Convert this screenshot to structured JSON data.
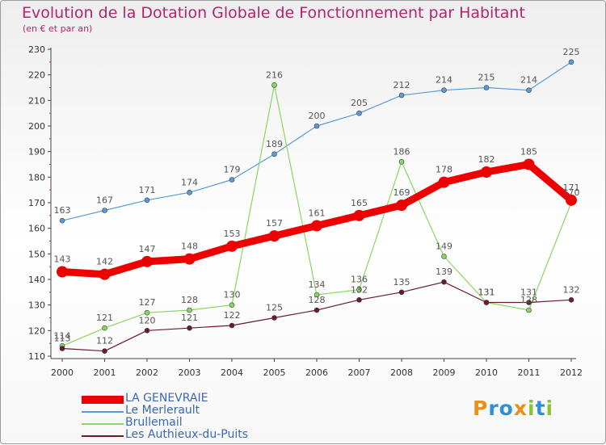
{
  "chart_data": {
    "type": "line",
    "title": "Evolution de la Dotation Globale de Fonctionnement par Habitant",
    "subtitle": "(en € et par an)",
    "xlabel": "",
    "ylabel": "",
    "categories": [
      "2000",
      "2001",
      "2002",
      "2003",
      "2004",
      "2005",
      "2006",
      "2007",
      "2008",
      "2009",
      "2010",
      "2011",
      "2012"
    ],
    "ylim": [
      110,
      230
    ],
    "yticks": [
      110,
      120,
      130,
      140,
      150,
      160,
      170,
      180,
      190,
      200,
      210,
      220,
      230
    ],
    "grid": false,
    "legend_position": "bottom-left",
    "series": [
      {
        "name": "LA GENEVRAIE",
        "color": "#ee0000",
        "width": 9,
        "marker": 7,
        "values": [
          143,
          142,
          147,
          148,
          153,
          157,
          161,
          165,
          169,
          178,
          182,
          185,
          171
        ],
        "labels": [
          "143",
          "142",
          "147",
          "148",
          "153",
          "157",
          "161",
          "165",
          "169",
          "178",
          "182",
          "185",
          "171"
        ]
      },
      {
        "name": "Le Merlerault",
        "color": "#5a9ad6",
        "width": 1.2,
        "marker": 3,
        "values": [
          163,
          167,
          171,
          174,
          179,
          189,
          200,
          205,
          212,
          214,
          215,
          214,
          225
        ],
        "labels": [
          "163",
          "167",
          "171",
          "174",
          "179",
          "189",
          "200",
          "205",
          "212",
          "214",
          "215",
          "214",
          "225"
        ]
      },
      {
        "name": "Brullemail",
        "color": "#88d860",
        "width": 1.2,
        "marker": 3,
        "values": [
          114,
          121,
          127,
          128,
          130,
          216,
          134,
          136,
          186,
          149,
          131,
          128,
          170
        ],
        "labels": [
          "114",
          "121",
          "127",
          "128",
          "130",
          "216",
          "134",
          "136",
          "186",
          "149",
          "131",
          "128",
          "170"
        ]
      },
      {
        "name": "Les Authieux-du-Puits",
        "color": "#6a1a28",
        "width": 1.2,
        "marker": 3,
        "values": [
          113,
          112,
          120,
          121,
          122,
          125,
          128,
          132,
          135,
          139,
          131,
          131,
          132
        ],
        "labels": [
          "113",
          "112",
          "120",
          "121",
          "122",
          "125",
          "128",
          "132",
          "135",
          "139",
          "131",
          "131",
          "132"
        ]
      }
    ]
  },
  "logo": {
    "text": "Proxiti",
    "letters": [
      "P",
      "r",
      "o",
      "x",
      "i",
      "t",
      "i"
    ],
    "colors": [
      "#e8901a",
      "#2f8fd8",
      "#2f8fd8",
      "#e8901a",
      "#88c43a",
      "#2f8fd8",
      "#88c43a"
    ]
  }
}
